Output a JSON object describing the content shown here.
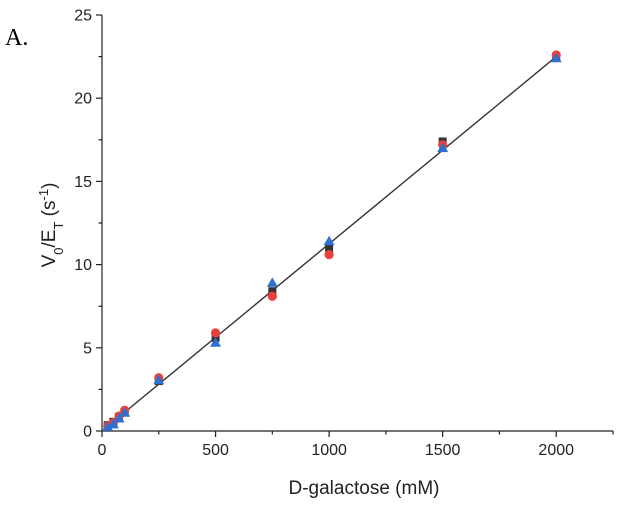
{
  "chart_data": {
    "type": "scatter",
    "panel_label": "A.",
    "xlabel": "D-galactose (mM)",
    "ylabel": "V0/ET (s-1)",
    "ylabel_parts": {
      "main1": "V",
      "sub1": "0",
      "main2": "/E",
      "sub2": "T",
      "main3": " (s",
      "sup": "-1",
      "main4": ")"
    },
    "xlim": [
      0,
      2250
    ],
    "ylim": [
      0,
      25
    ],
    "xticks": [
      0,
      500,
      1000,
      1500,
      2000
    ],
    "yticks": [
      0,
      5,
      10,
      15,
      20,
      25
    ],
    "x_minor_step": 250,
    "y_minor_step": 2.5,
    "grid": false,
    "legend": "none",
    "series": [
      {
        "marker": "square",
        "color": "#333333",
        "points": [
          [
            25,
            0.35
          ],
          [
            50,
            0.55
          ],
          [
            75,
            0.85
          ],
          [
            100,
            1.15
          ],
          [
            250,
            3.0
          ],
          [
            500,
            5.6
          ],
          [
            750,
            8.4
          ],
          [
            1000,
            11.0
          ],
          [
            1500,
            17.4
          ],
          [
            2000,
            22.5
          ]
        ]
      },
      {
        "marker": "circle",
        "color": "#e8413c",
        "points": [
          [
            25,
            0.3
          ],
          [
            50,
            0.5
          ],
          [
            75,
            0.9
          ],
          [
            100,
            1.25
          ],
          [
            250,
            3.2
          ],
          [
            500,
            5.9
          ],
          [
            750,
            8.1
          ],
          [
            1000,
            10.6
          ],
          [
            1500,
            17.2
          ],
          [
            2000,
            22.6
          ]
        ]
      },
      {
        "marker": "triangle",
        "color": "#2f6fd0",
        "points": [
          [
            25,
            0.25
          ],
          [
            50,
            0.4
          ],
          [
            75,
            0.75
          ],
          [
            100,
            1.1
          ],
          [
            250,
            3.05
          ],
          [
            500,
            5.3
          ],
          [
            750,
            8.9
          ],
          [
            1000,
            11.4
          ],
          [
            1500,
            17.0
          ],
          [
            2000,
            22.4
          ]
        ]
      }
    ],
    "fit_line": {
      "color": "#333333",
      "x": [
        0,
        2000
      ],
      "y": [
        0,
        22.5
      ]
    }
  }
}
